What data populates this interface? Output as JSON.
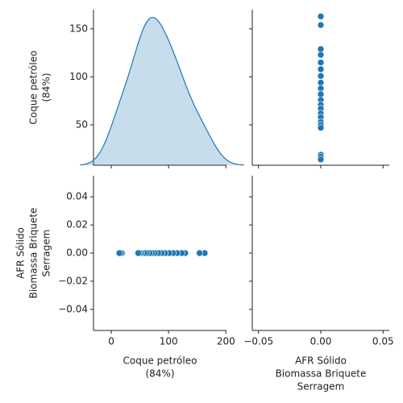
{
  "chart_data": [
    {
      "type": "kde",
      "color": "#1f77b4",
      "ylabel": [
        "Coque petróleo",
        "(84%)"
      ],
      "values": [
        163,
        154,
        129,
        123,
        115,
        108,
        101,
        94,
        88,
        82,
        76,
        71,
        67,
        62,
        58,
        53,
        50,
        47,
        19,
        17,
        14
      ],
      "ylim": [
        8,
        170
      ],
      "yticks": [
        50,
        100,
        150
      ]
    },
    {
      "type": "scatter",
      "color": "#1f77b4",
      "x": [
        0,
        0,
        0,
        0,
        0,
        0,
        0,
        0,
        0,
        0,
        0,
        0,
        0,
        0,
        0,
        0,
        0,
        0,
        0,
        0,
        0
      ],
      "y": [
        163,
        154,
        129,
        123,
        115,
        108,
        101,
        94,
        88,
        82,
        76,
        71,
        67,
        62,
        58,
        53,
        50,
        47,
        19,
        17,
        14
      ]
    },
    {
      "type": "scatter",
      "color": "#1f77b4",
      "xlabel": [
        "Coque petróleo",
        "(84%)"
      ],
      "ylabel": [
        "AFR Sólido",
        "Biomassa Briquete",
        "Serragem"
      ],
      "x": [
        163,
        154,
        129,
        123,
        115,
        108,
        101,
        94,
        88,
        82,
        76,
        71,
        67,
        62,
        58,
        53,
        50,
        47,
        19,
        17,
        14
      ],
      "y": [
        0,
        0,
        0,
        0,
        0,
        0,
        0,
        0,
        0,
        0,
        0,
        0,
        0,
        0,
        0,
        0,
        0,
        0,
        0,
        0,
        0
      ],
      "xlim": [
        -31,
        201
      ],
      "xticks": [
        0,
        100,
        200
      ],
      "ylim": [
        -0.055,
        0.055
      ],
      "yticks": [
        {
          "value": -0.04,
          "label": "−0.04"
        },
        {
          "value": -0.02,
          "label": "−0.02"
        },
        {
          "value": 0,
          "label": "0.00"
        },
        {
          "value": 0.02,
          "label": "0.02"
        },
        {
          "value": 0.04,
          "label": "0.04"
        }
      ]
    },
    {
      "type": "empty",
      "xlabel": [
        "AFR Sólido",
        "Biomassa Briquete",
        "Serragem"
      ],
      "xlim": [
        -0.055,
        0.055
      ],
      "xticks": [
        {
          "value": -0.05,
          "label": "−0.05"
        },
        {
          "value": 0,
          "label": "0.00"
        },
        {
          "value": 0.05,
          "label": "0.05"
        }
      ]
    }
  ]
}
